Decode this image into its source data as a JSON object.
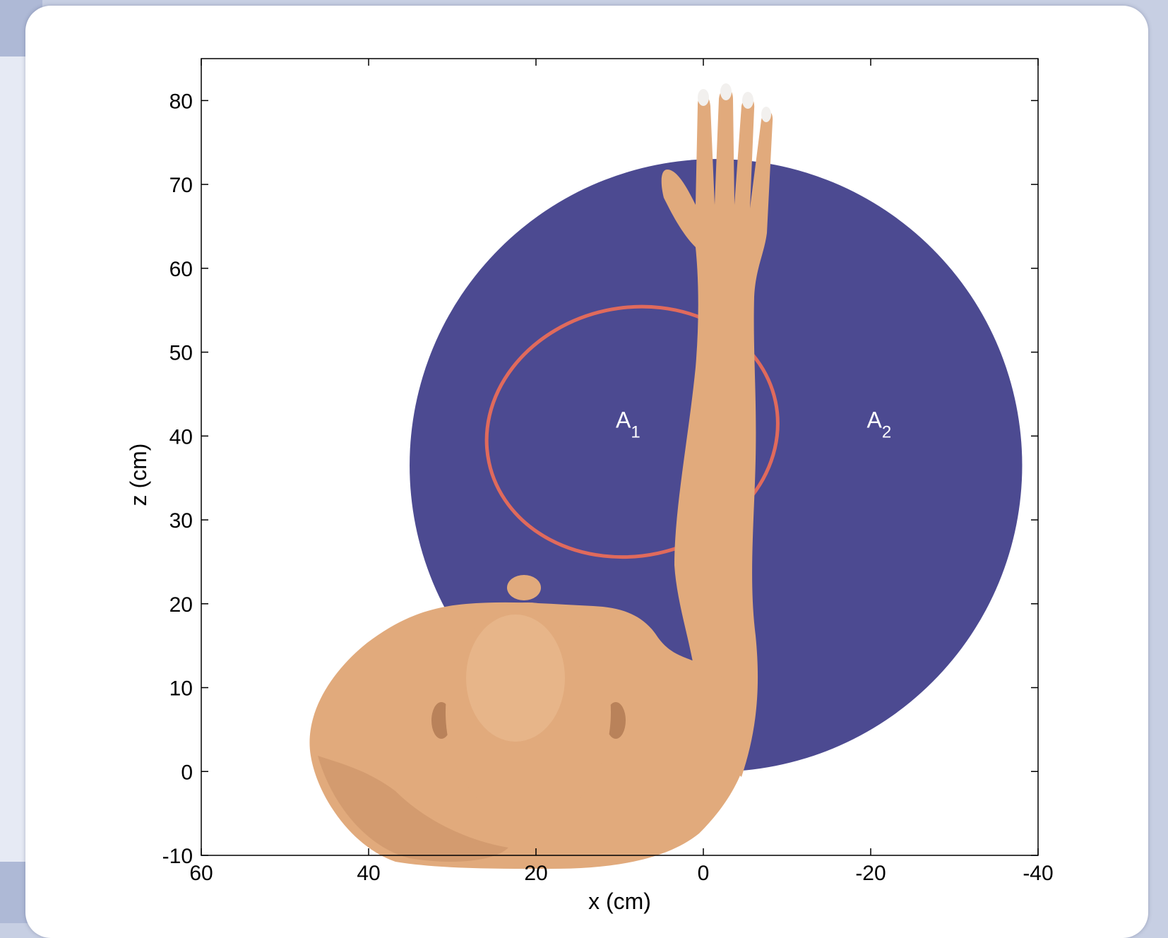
{
  "colors": {
    "workspace": "#4c4a91",
    "ellipse": "#e06a5c",
    "skin": "#e1aa7c",
    "skin_shade": "#b9825a"
  },
  "chart_data": {
    "type": "area",
    "title": "",
    "xlabel": "x (cm)",
    "ylabel": "z (cm)",
    "xlim": [
      60,
      -40
    ],
    "ylim": [
      -10,
      85
    ],
    "x_reversed": true,
    "x_ticks": [
      60,
      40,
      20,
      0,
      -20,
      -40
    ],
    "y_ticks": [
      -10,
      0,
      10,
      20,
      30,
      40,
      50,
      60,
      70,
      80
    ],
    "x_tick_labels": [
      "60",
      "40",
      "20",
      "0",
      "-20",
      "-40"
    ],
    "y_tick_labels": [
      "-10",
      "0",
      "10",
      "20",
      "30",
      "40",
      "50",
      "60",
      "70",
      "80"
    ],
    "grid": false,
    "regions": [
      {
        "name": "A",
        "subscript": "2",
        "shape": "disc",
        "center": [
          -1.5,
          36.5
        ],
        "radius": 36.6
      },
      {
        "name": "A",
        "subscript": "1",
        "shape": "ellipse",
        "center": [
          8.5,
          40.5
        ],
        "rx": 17.5,
        "ry": 14.8,
        "rotation_deg": -12
      }
    ],
    "region_labels": [
      {
        "name": "A",
        "subscript": "1",
        "x": 9,
        "y": 41
      },
      {
        "name": "A",
        "subscript": "2",
        "x": -21,
        "y": 41
      }
    ]
  }
}
